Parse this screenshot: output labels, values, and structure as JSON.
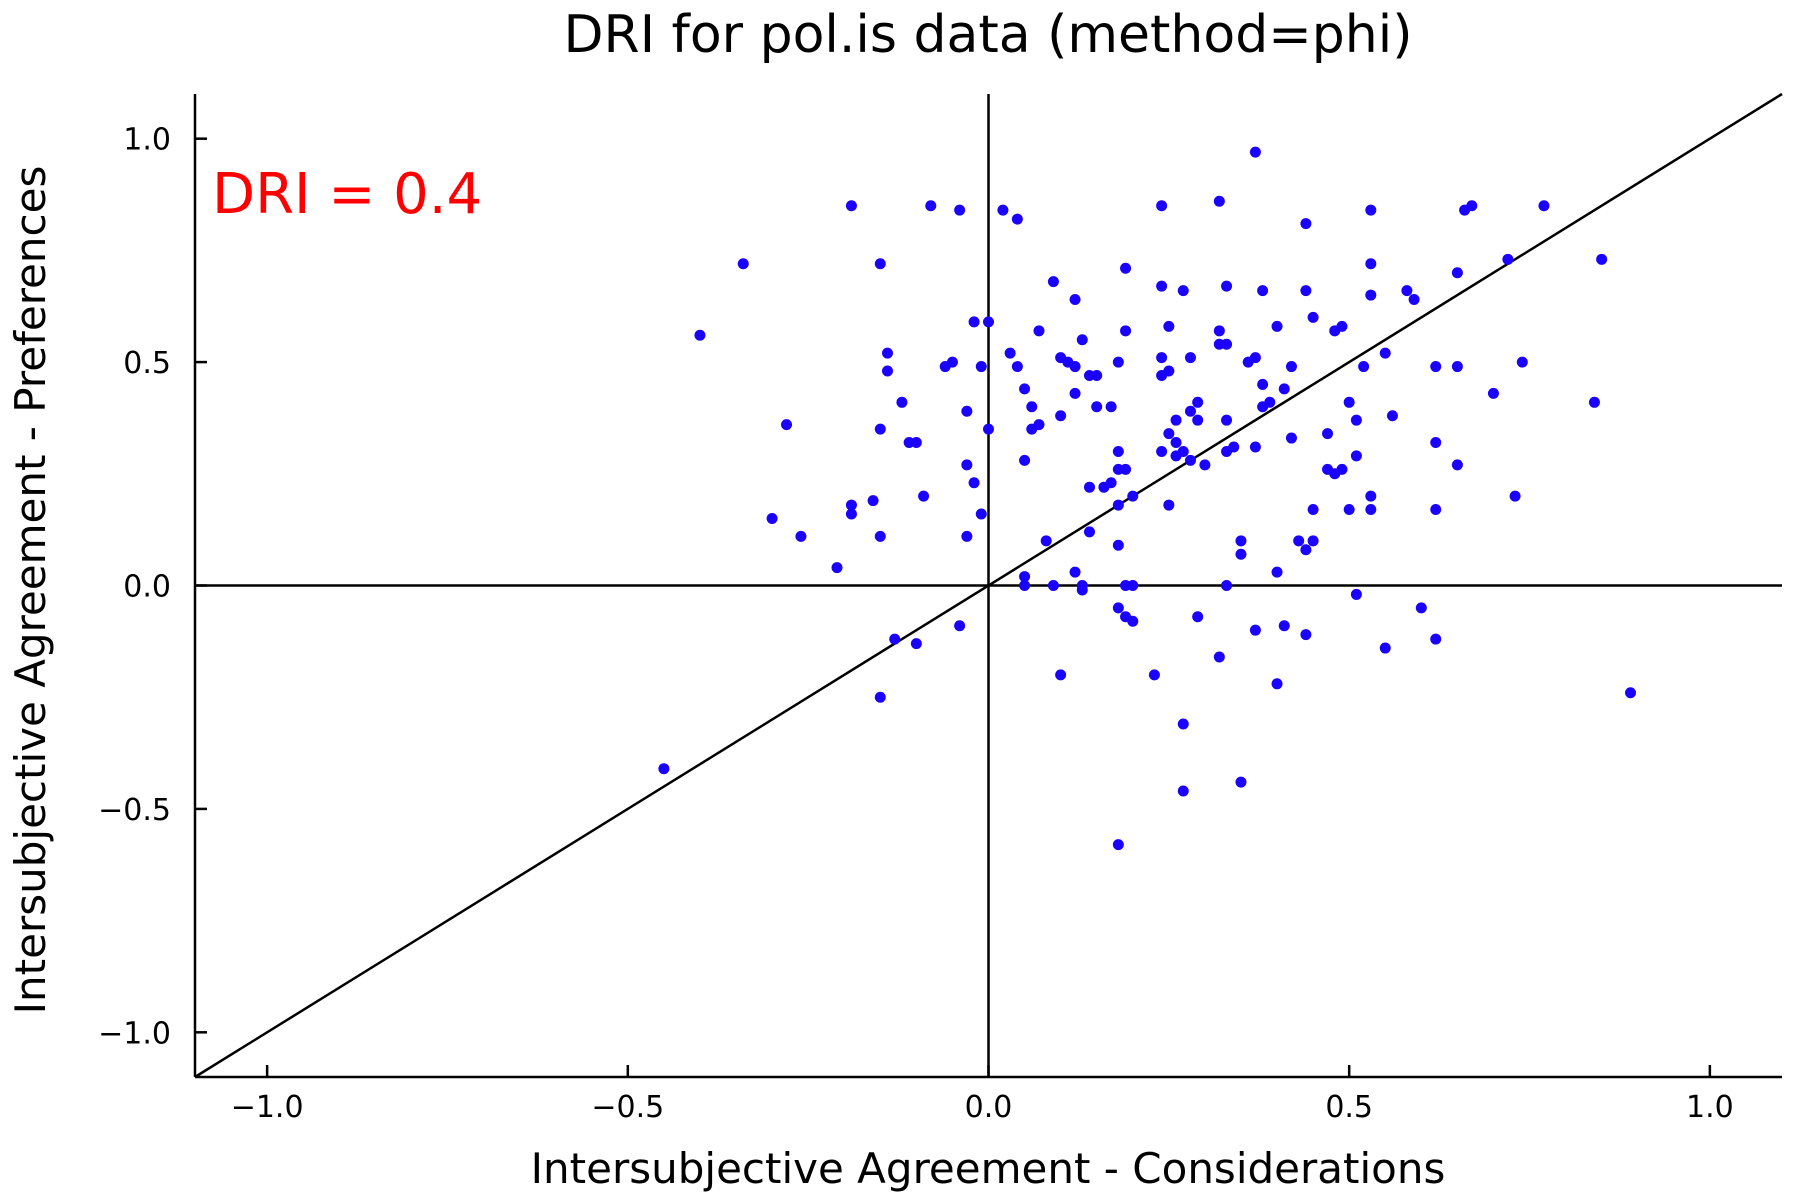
{
  "chart_data": {
    "type": "scatter",
    "title": "DRI for pol.is data (method=phi)",
    "xlabel": "Intersubjective Agreement - Considerations",
    "ylabel": "Intersubjective Agreement - Preferences",
    "xlim": [
      -1.1,
      1.1
    ],
    "ylim": [
      -1.1,
      1.1
    ],
    "xticks": [
      -1.0,
      -0.5,
      0.0,
      0.5,
      1.0
    ],
    "yticks": [
      -1.0,
      -0.5,
      0.0,
      0.5,
      1.0
    ],
    "xtick_labels": [
      "−1.0",
      "−0.5",
      "0.0",
      "0.5",
      "1.0"
    ],
    "ytick_labels": [
      "−1.0",
      "−0.5",
      "0.0",
      "0.5",
      "1.0"
    ],
    "grid": false,
    "reference_lines": [
      "x=0",
      "y=0",
      "y=x"
    ],
    "annotation": {
      "text": "DRI = 0.4",
      "color": "#ff0000",
      "position": "top-left"
    },
    "marker_color": "#1a00ff",
    "line_color": "#000000",
    "points": [
      [
        -0.4,
        0.56
      ],
      [
        -0.34,
        0.72
      ],
      [
        -0.3,
        0.15
      ],
      [
        -0.28,
        0.36
      ],
      [
        -0.26,
        0.11
      ],
      [
        -0.21,
        0.04
      ],
      [
        -0.19,
        0.85
      ],
      [
        -0.19,
        0.18
      ],
      [
        -0.19,
        0.16
      ],
      [
        -0.16,
        0.19
      ],
      [
        -0.15,
        0.72
      ],
      [
        -0.15,
        0.35
      ],
      [
        -0.15,
        0.11
      ],
      [
        -0.14,
        0.52
      ],
      [
        -0.14,
        0.48
      ],
      [
        -0.12,
        0.41
      ],
      [
        -0.11,
        0.32
      ],
      [
        -0.1,
        0.32
      ],
      [
        -0.09,
        0.2
      ],
      [
        -0.08,
        0.85
      ],
      [
        -0.04,
        0.84
      ],
      [
        -0.06,
        0.49
      ],
      [
        -0.05,
        0.5
      ],
      [
        -0.03,
        0.39
      ],
      [
        -0.03,
        0.27
      ],
      [
        -0.02,
        0.23
      ],
      [
        -0.03,
        0.11
      ],
      [
        -0.02,
        0.59
      ],
      [
        -0.01,
        0.49
      ],
      [
        -0.01,
        0.16
      ],
      [
        0.0,
        0.59
      ],
      [
        0.0,
        0.35
      ],
      [
        0.02,
        0.84
      ],
      [
        0.04,
        0.82
      ],
      [
        0.03,
        0.52
      ],
      [
        0.04,
        0.49
      ],
      [
        0.05,
        0.44
      ],
      [
        0.06,
        0.4
      ],
      [
        0.07,
        0.57
      ],
      [
        0.07,
        0.36
      ],
      [
        0.06,
        0.35
      ],
      [
        0.05,
        0.28
      ],
      [
        0.09,
        0.68
      ],
      [
        0.1,
        0.51
      ],
      [
        0.1,
        0.38
      ],
      [
        0.11,
        0.5
      ],
      [
        0.12,
        0.49
      ],
      [
        0.12,
        0.64
      ],
      [
        0.13,
        0.55
      ],
      [
        0.14,
        0.47
      ],
      [
        0.15,
        0.47
      ],
      [
        0.12,
        0.43
      ],
      [
        0.15,
        0.4
      ],
      [
        0.17,
        0.4
      ],
      [
        0.18,
        0.5
      ],
      [
        0.19,
        0.71
      ],
      [
        0.19,
        0.57
      ],
      [
        0.18,
        0.3
      ],
      [
        0.18,
        0.26
      ],
      [
        0.19,
        0.26
      ],
      [
        0.16,
        0.22
      ],
      [
        0.17,
        0.23
      ],
      [
        0.14,
        0.22
      ],
      [
        0.2,
        0.2
      ],
      [
        0.18,
        0.18
      ],
      [
        0.14,
        0.12
      ],
      [
        0.18,
        0.09
      ],
      [
        0.08,
        0.1
      ],
      [
        0.05,
        0.02
      ],
      [
        0.05,
        0.0
      ],
      [
        0.09,
        0.0
      ],
      [
        0.12,
        0.03
      ],
      [
        0.13,
        0.0
      ],
      [
        0.13,
        -0.01
      ],
      [
        0.19,
        0.0
      ],
      [
        0.2,
        0.0
      ],
      [
        0.18,
        -0.05
      ],
      [
        0.19,
        -0.07
      ],
      [
        0.2,
        -0.08
      ],
      [
        0.1,
        -0.2
      ],
      [
        0.18,
        -0.58
      ],
      [
        0.24,
        0.85
      ],
      [
        0.24,
        0.67
      ],
      [
        0.27,
        0.66
      ],
      [
        0.24,
        0.51
      ],
      [
        0.25,
        0.58
      ],
      [
        0.25,
        0.48
      ],
      [
        0.24,
        0.47
      ],
      [
        0.28,
        0.51
      ],
      [
        0.28,
        0.39
      ],
      [
        0.29,
        0.41
      ],
      [
        0.26,
        0.37
      ],
      [
        0.29,
        0.37
      ],
      [
        0.25,
        0.34
      ],
      [
        0.26,
        0.32
      ],
      [
        0.27,
        0.3
      ],
      [
        0.26,
        0.29
      ],
      [
        0.24,
        0.3
      ],
      [
        0.28,
        0.28
      ],
      [
        0.3,
        0.27
      ],
      [
        0.25,
        0.18
      ],
      [
        0.32,
        0.86
      ],
      [
        0.33,
        0.67
      ],
      [
        0.32,
        0.57
      ],
      [
        0.32,
        0.54
      ],
      [
        0.33,
        0.54
      ],
      [
        0.33,
        0.37
      ],
      [
        0.33,
        0.3
      ],
      [
        0.34,
        0.31
      ],
      [
        0.37,
        0.97
      ],
      [
        0.37,
        0.51
      ],
      [
        0.36,
        0.5
      ],
      [
        0.38,
        0.45
      ],
      [
        0.38,
        0.4
      ],
      [
        0.39,
        0.41
      ],
      [
        0.37,
        0.31
      ],
      [
        0.38,
        0.66
      ],
      [
        0.4,
        0.58
      ],
      [
        0.42,
        0.49
      ],
      [
        0.41,
        0.44
      ],
      [
        0.42,
        0.33
      ],
      [
        0.44,
        0.81
      ],
      [
        0.44,
        0.66
      ],
      [
        0.45,
        0.6
      ],
      [
        0.45,
        0.17
      ],
      [
        0.45,
        0.1
      ],
      [
        0.43,
        0.1
      ],
      [
        0.44,
        0.08
      ],
      [
        0.4,
        0.03
      ],
      [
        0.35,
        0.1
      ],
      [
        0.35,
        0.07
      ],
      [
        0.33,
        0.0
      ],
      [
        0.29,
        -0.07
      ],
      [
        0.32,
        -0.16
      ],
      [
        0.23,
        -0.2
      ],
      [
        0.27,
        -0.31
      ],
      [
        0.27,
        -0.46
      ],
      [
        0.35,
        -0.44
      ],
      [
        0.37,
        -0.1
      ],
      [
        0.41,
        -0.09
      ],
      [
        0.44,
        -0.11
      ],
      [
        0.4,
        -0.22
      ],
      [
        0.48,
        0.57
      ],
      [
        0.49,
        0.58
      ],
      [
        0.47,
        0.34
      ],
      [
        0.47,
        0.26
      ],
      [
        0.48,
        0.25
      ],
      [
        0.49,
        0.26
      ],
      [
        0.5,
        0.41
      ],
      [
        0.51,
        0.37
      ],
      [
        0.51,
        0.29
      ],
      [
        0.5,
        0.17
      ],
      [
        0.52,
        0.49
      ],
      [
        0.53,
        0.84
      ],
      [
        0.53,
        0.72
      ],
      [
        0.53,
        0.65
      ],
      [
        0.53,
        0.2
      ],
      [
        0.53,
        0.17
      ],
      [
        0.51,
        -0.02
      ],
      [
        0.55,
        0.52
      ],
      [
        0.56,
        0.38
      ],
      [
        0.55,
        -0.14
      ],
      [
        0.58,
        0.66
      ],
      [
        0.59,
        0.64
      ],
      [
        0.6,
        -0.05
      ],
      [
        0.62,
        0.49
      ],
      [
        0.62,
        0.17
      ],
      [
        0.62,
        0.32
      ],
      [
        0.62,
        -0.12
      ],
      [
        0.65,
        0.7
      ],
      [
        0.66,
        0.84
      ],
      [
        0.67,
        0.85
      ],
      [
        0.65,
        0.49
      ],
      [
        0.65,
        0.27
      ],
      [
        0.7,
        0.43
      ],
      [
        0.72,
        0.73
      ],
      [
        0.74,
        0.5
      ],
      [
        0.73,
        0.2
      ],
      [
        0.77,
        0.85
      ],
      [
        0.84,
        0.41
      ],
      [
        0.85,
        0.73
      ],
      [
        0.89,
        -0.24
      ],
      [
        -0.45,
        -0.41
      ],
      [
        -0.15,
        -0.25
      ],
      [
        -0.13,
        -0.12
      ],
      [
        -0.1,
        -0.13
      ],
      [
        -0.04,
        -0.09
      ]
    ]
  }
}
